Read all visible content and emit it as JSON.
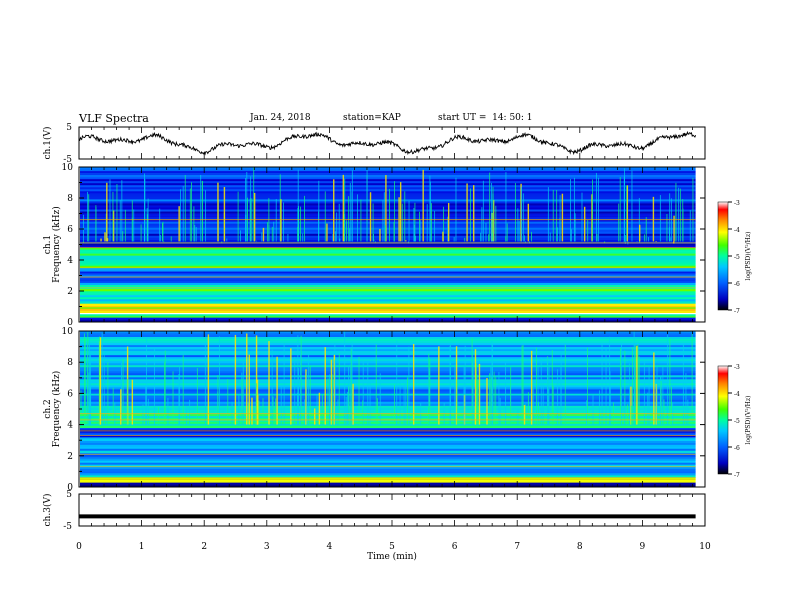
{
  "header": {
    "title": "VLF Spectra",
    "date": "Jan. 24, 2018",
    "station": "station=KAP",
    "start_ut": "start UT =  14: 50: 1"
  },
  "colors": {
    "background": "#ffffff",
    "axes": "#000000",
    "colormap": [
      "#000078",
      "#0000ff",
      "#00a0ff",
      "#00ffb0",
      "#00ff00",
      "#ffff00",
      "#ff8000",
      "#ff0000",
      "#ffffff"
    ]
  },
  "chart_data": [
    {
      "type": "line",
      "name": "ch1-waveform",
      "ylabel": "ch.1(V)",
      "yticks": [
        "5",
        "-5"
      ],
      "ylim": [
        -5,
        5
      ],
      "xlim": [
        0,
        10
      ],
      "data_end_min": 9.85
    },
    {
      "type": "heatmap",
      "name": "ch1-spectrogram",
      "ylabel": "ch.1 Frequency (kHz)",
      "yticks": [
        "0",
        "2",
        "4",
        "6",
        "8",
        "10"
      ],
      "ylim": [
        0,
        10
      ],
      "xlim": [
        0,
        10
      ],
      "colorbar": {
        "label": "log(PSD)(V²/Hz)",
        "ticks": [
          "-3",
          "-4",
          "-5",
          "-6",
          "-7"
        ],
        "range": [
          -7,
          -3
        ]
      },
      "bands": [
        {
          "f": [
            0.0,
            0.3
          ],
          "level": -6.5
        },
        {
          "f": [
            0.3,
            0.5
          ],
          "level": -5.2
        },
        {
          "f": [
            0.6,
            1.2
          ],
          "level": -4.3
        },
        {
          "f": [
            1.2,
            2.0
          ],
          "level": -5.3
        },
        {
          "f": [
            2.0,
            2.4
          ],
          "level": -4.8
        },
        {
          "f": [
            2.4,
            3.5
          ],
          "level": -6.0
        },
        {
          "f": [
            3.5,
            4.8
          ],
          "level": -5.0
        },
        {
          "f": [
            4.8,
            5.3
          ],
          "level": -6.4
        },
        {
          "f": [
            5.3,
            10.0
          ],
          "level": -6.2
        }
      ]
    },
    {
      "type": "heatmap",
      "name": "ch2-spectrogram",
      "ylabel": "ch.2 Frequency (kHz)",
      "yticks": [
        "0",
        "2",
        "4",
        "6",
        "8",
        "10"
      ],
      "ylim": [
        0,
        10
      ],
      "xlim": [
        0,
        10
      ],
      "colorbar": {
        "label": "log(PSD)(V²/Hz)",
        "ticks": [
          "-3",
          "-4",
          "-5",
          "-6",
          "-7"
        ],
        "range": [
          -7,
          -3
        ]
      },
      "bands": [
        {
          "f": [
            0.0,
            0.3
          ],
          "level": -6.5
        },
        {
          "f": [
            0.3,
            0.6
          ],
          "level": -4.6
        },
        {
          "f": [
            0.6,
            1.3
          ],
          "level": -5.5
        },
        {
          "f": [
            1.3,
            2.2
          ],
          "level": -5.8
        },
        {
          "f": [
            2.2,
            3.2
          ],
          "level": -5.5
        },
        {
          "f": [
            3.2,
            3.8
          ],
          "level": -6.4
        },
        {
          "f": [
            3.8,
            4.8
          ],
          "level": -5.0
        },
        {
          "f": [
            4.8,
            6.0
          ],
          "level": -5.6
        },
        {
          "f": [
            6.0,
            10.0
          ],
          "level": -5.6
        }
      ]
    },
    {
      "type": "line",
      "name": "ch3-waveform",
      "ylabel": "ch.3(V)",
      "yticks": [
        "5",
        "-5"
      ],
      "ylim": [
        -5,
        5
      ],
      "xlim": [
        0,
        10
      ],
      "x": [
        0,
        9.85
      ],
      "y": [
        -2,
        -2
      ]
    }
  ],
  "xaxis": {
    "label": "Time (min)",
    "ticks": [
      "0",
      "1",
      "2",
      "3",
      "4",
      "5",
      "6",
      "7",
      "8",
      "9",
      "10"
    ]
  }
}
